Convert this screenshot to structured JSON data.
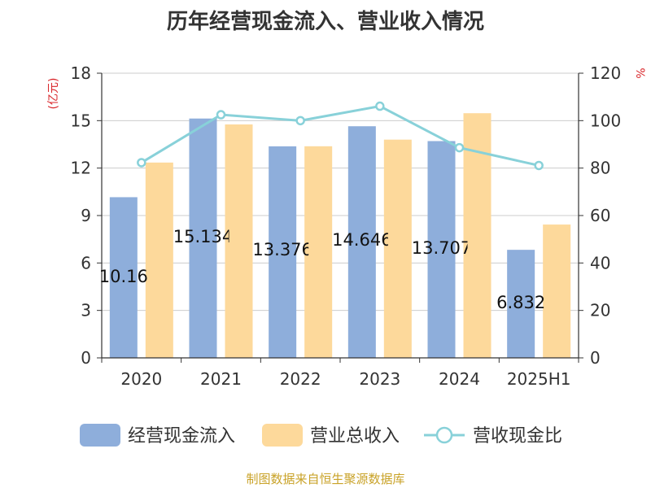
{
  "chart_data": {
    "type": "bar",
    "title": "历年经营现金流入、营业收入情况",
    "categories": [
      "2020",
      "2021",
      "2022",
      "2023",
      "2024",
      "2025H1"
    ],
    "left_axis": {
      "label": "(亿元)",
      "min": 0,
      "max": 18,
      "ticks": [
        "0",
        "3",
        "6",
        "9",
        "12",
        "15",
        "18"
      ]
    },
    "right_axis": {
      "label": "%",
      "min": 0,
      "max": 120,
      "ticks": [
        "0",
        "20",
        "40",
        "60",
        "80",
        "100",
        "120"
      ]
    },
    "series": [
      {
        "name": "经营现金流入",
        "type": "bar",
        "axis": "left",
        "color": "#8eaedb",
        "values": [
          10.16,
          15.134,
          13.376,
          14.646,
          13.707,
          6.832
        ],
        "labels": [
          "10.16",
          "15.134",
          "13.376",
          "14.646",
          "13.707",
          "6.832"
        ]
      },
      {
        "name": "营业总收入",
        "type": "bar",
        "axis": "left",
        "color": "#fdd99b",
        "values": [
          12.35,
          14.76,
          13.38,
          13.8,
          15.47,
          8.43
        ]
      },
      {
        "name": "营收现金比",
        "type": "line",
        "axis": "right",
        "color": "#88d1d9",
        "values": [
          82.3,
          102.5,
          100.0,
          106.1,
          88.6,
          81.1
        ]
      }
    ],
    "grid": true,
    "legend_position": "bottom"
  },
  "source": "制图数据来自恒生聚源数据库"
}
